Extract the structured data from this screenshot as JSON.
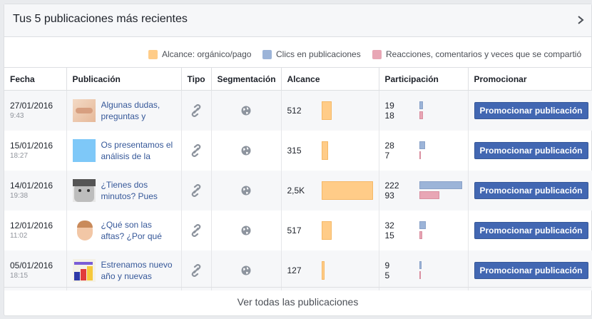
{
  "header": {
    "title": "Tus 5 publicaciones más recientes"
  },
  "legend": [
    {
      "label": "Alcance: orgánico/pago",
      "color": "#ffcc88"
    },
    {
      "label": "Clics en publicaciones",
      "color": "#9cb4d8"
    },
    {
      "label": "Reacciones, comentarios y veces que se compartió",
      "color": "#e8a6b5"
    }
  ],
  "columns": [
    "Fecha",
    "Publicación",
    "Tipo",
    "Segmentación",
    "Alcance",
    "Participación",
    "Promocionar"
  ],
  "rows": [
    {
      "date": "27/01/2016",
      "time": "9:43",
      "text": "Algunas dudas, preguntas y respuestas",
      "type_icon": "link-icon",
      "target_icon": "globe-icon",
      "reach": "512",
      "reach_ratio": 0.2,
      "clicks": "19",
      "reactions": "18",
      "button": "Promocionar publicación",
      "thumb": "face-light"
    },
    {
      "date": "15/01/2016",
      "time": "18:27",
      "text": "Os presentamos el análisis de la Atención",
      "type_icon": "link-icon",
      "target_icon": "globe-icon",
      "reach": "315",
      "reach_ratio": 0.12,
      "clicks": "28",
      "reactions": "7",
      "button": "Promocionar publicación",
      "thumb": "blue-square"
    },
    {
      "date": "14/01/2016",
      "time": "19:38",
      "text": "¿Tienes dos minutos? Pues siéntate,",
      "type_icon": "link-icon",
      "target_icon": "globe-icon",
      "reach": "2,5K",
      "reach_ratio": 1.0,
      "clicks": "222",
      "reactions": "93",
      "button": "Promocionar publicación",
      "thumb": "face-gray"
    },
    {
      "date": "12/01/2016",
      "time": "11:02",
      "text": "¿Qué son las aftas? ¿Por qué aparecen",
      "type_icon": "link-icon",
      "target_icon": "globe-icon",
      "reach": "517",
      "reach_ratio": 0.2,
      "clicks": "32",
      "reactions": "15",
      "button": "Promocionar publicación",
      "thumb": "face-child"
    },
    {
      "date": "05/01/2016",
      "time": "18:15",
      "text": "Estrenamos nuevo año y nuevas ilusiones",
      "type_icon": "link-icon",
      "target_icon": "globe-icon",
      "reach": "127",
      "reach_ratio": 0.05,
      "clicks": "9",
      "reactions": "5",
      "button": "Promocionar publicación",
      "thumb": "colorful"
    }
  ],
  "participation_max": 222,
  "footer": {
    "label": "Ver todas las publicaciones"
  }
}
